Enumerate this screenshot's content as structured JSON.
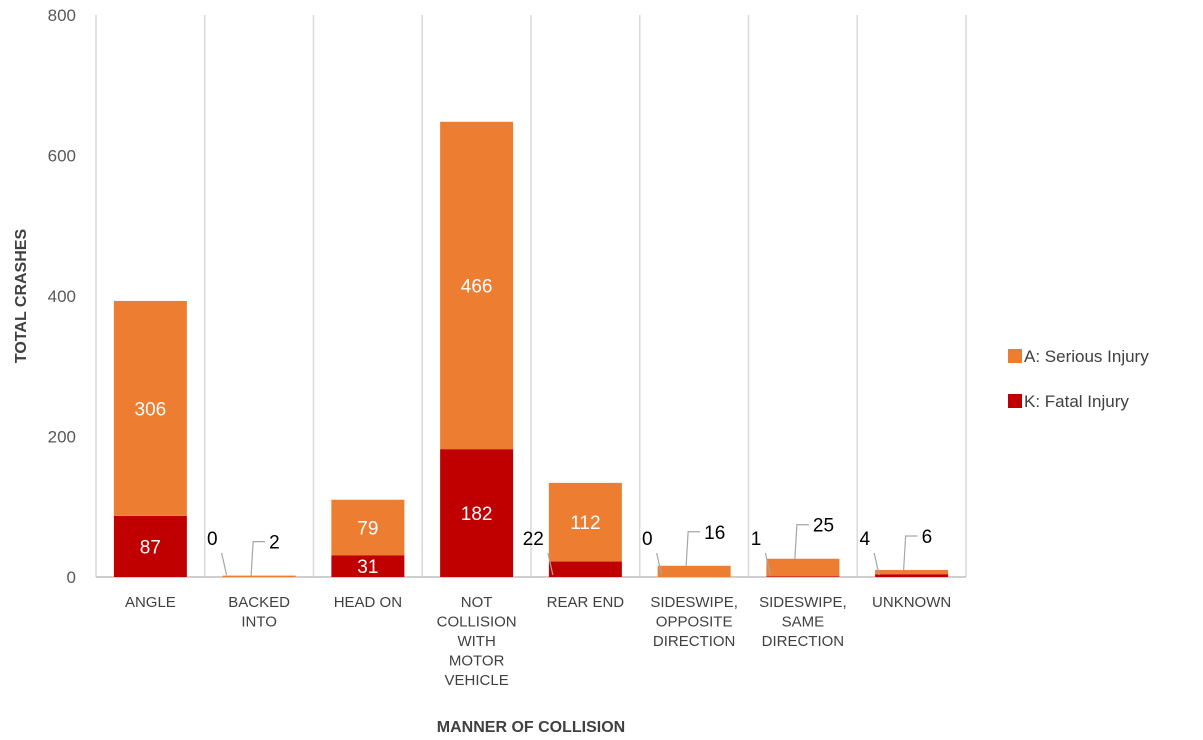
{
  "chart_data": {
    "type": "bar",
    "stacked": true,
    "xlabel": "MANNER OF COLLISION",
    "ylabel": "TOTAL CRASHES",
    "ylim": [
      0,
      800
    ],
    "yticks": [
      0,
      200,
      400,
      600,
      800
    ],
    "grid": "vertical category separators",
    "legend_position": "right",
    "categories": [
      [
        "ANGLE"
      ],
      [
        "BACKED",
        "INTO"
      ],
      [
        "HEAD ON"
      ],
      [
        "NOT",
        "COLLISION",
        "WITH",
        "MOTOR",
        "VEHICLE"
      ],
      [
        "REAR END"
      ],
      [
        "SIDESWIPE,",
        "OPPOSITE",
        "DIRECTION"
      ],
      [
        "SIDESWIPE,",
        "SAME",
        "DIRECTION"
      ],
      [
        "UNKNOWN"
      ]
    ],
    "series": [
      {
        "name": "K: Fatal Injury",
        "color": "#C00000",
        "values": [
          87,
          0,
          31,
          182,
          22,
          0,
          1,
          4
        ]
      },
      {
        "name": "A: Serious Injury",
        "color": "#ED7D31",
        "values": [
          306,
          2,
          79,
          466,
          112,
          16,
          25,
          6
        ]
      }
    ],
    "legend_order": [
      1,
      0
    ]
  },
  "colors": {
    "gridline": "#d9d9d9",
    "axis": "#bfbfbf"
  }
}
